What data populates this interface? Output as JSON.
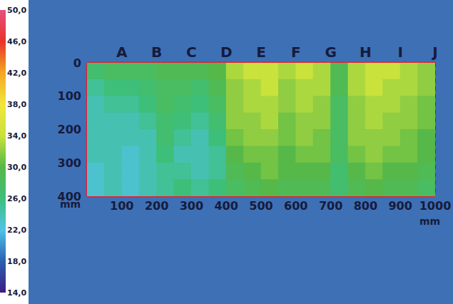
{
  "chart_data": {
    "type": "heatmap",
    "xlabel": "mm",
    "ylabel": "mm",
    "x": [
      25,
      75,
      125,
      175,
      225,
      275,
      325,
      375,
      425,
      475,
      525,
      575,
      625,
      675,
      725,
      775,
      825,
      875,
      925,
      975
    ],
    "y": [
      25,
      75,
      125,
      175,
      225,
      275,
      325,
      375
    ],
    "values": [
      [
        27,
        28,
        28,
        28,
        29,
        29,
        29,
        30,
        33,
        34,
        34,
        33,
        34,
        33,
        29,
        33,
        34,
        34,
        33,
        32
      ],
      [
        25,
        26,
        26,
        27,
        28,
        28,
        27,
        29,
        32,
        33,
        34,
        32,
        33,
        33,
        29,
        33,
        34,
        33,
        33,
        32
      ],
      [
        24,
        25,
        25,
        26,
        28,
        27,
        26,
        28,
        32,
        33,
        33,
        32,
        33,
        32,
        28,
        32,
        33,
        33,
        32,
        31
      ],
      [
        24,
        24,
        24,
        25,
        27,
        26,
        25,
        27,
        32,
        32,
        33,
        31,
        32,
        32,
        28,
        32,
        33,
        32,
        32,
        31
      ],
      [
        24,
        24,
        24,
        24,
        27,
        25,
        24,
        26,
        31,
        32,
        32,
        31,
        32,
        31,
        28,
        32,
        32,
        32,
        31,
        30
      ],
      [
        24,
        24,
        23,
        24,
        26,
        24,
        24,
        25,
        30,
        31,
        31,
        30,
        31,
        31,
        28,
        31,
        32,
        31,
        31,
        30
      ],
      [
        23,
        24,
        23,
        24,
        25,
        25,
        24,
        25,
        29,
        30,
        31,
        30,
        30,
        30,
        27,
        30,
        31,
        30,
        30,
        29
      ],
      [
        23,
        24,
        23,
        24,
        25,
        26,
        25,
        26,
        28,
        29,
        30,
        29,
        29,
        29,
        27,
        29,
        30,
        29,
        29,
        28
      ]
    ],
    "xlim": [
      0,
      1000
    ],
    "xticks": [
      100,
      200,
      300,
      400,
      500,
      600,
      700,
      800,
      900,
      1000
    ],
    "column_labels": [
      {
        "value": 100,
        "label": "A"
      },
      {
        "value": 200,
        "label": "B"
      },
      {
        "value": 300,
        "label": "C"
      },
      {
        "value": 400,
        "label": "D"
      },
      {
        "value": 500,
        "label": "E"
      },
      {
        "value": 600,
        "label": "F"
      },
      {
        "value": 700,
        "label": "G"
      },
      {
        "value": 800,
        "label": "H"
      },
      {
        "value": 900,
        "label": "I"
      },
      {
        "value": 1000,
        "label": "J"
      }
    ],
    "ylim": [
      0,
      400
    ],
    "yticks": [
      0,
      100,
      200,
      300,
      400
    ],
    "grid": true,
    "colorbar": {
      "range": [
        14,
        50
      ],
      "ticks": [
        {
          "value": 50,
          "label": "50,0"
        },
        {
          "value": 46,
          "label": "46,0"
        },
        {
          "value": 42,
          "label": "42,0"
        },
        {
          "value": 38,
          "label": "38,0"
        },
        {
          "value": 34,
          "label": "34,0"
        },
        {
          "value": 30,
          "label": "30,0"
        },
        {
          "value": 26,
          "label": "26,0"
        },
        {
          "value": 22,
          "label": "22,0"
        },
        {
          "value": 18,
          "label": "18,0"
        },
        {
          "value": 14,
          "label": "14,0"
        }
      ],
      "colors": [
        "#3b1d80",
        "#2d5fb3",
        "#4fc3e8",
        "#3dbf7a",
        "#56b848",
        "#c9e23c",
        "#f2e63a",
        "#f5a623",
        "#e8322a",
        "#e64f7d"
      ]
    }
  }
}
